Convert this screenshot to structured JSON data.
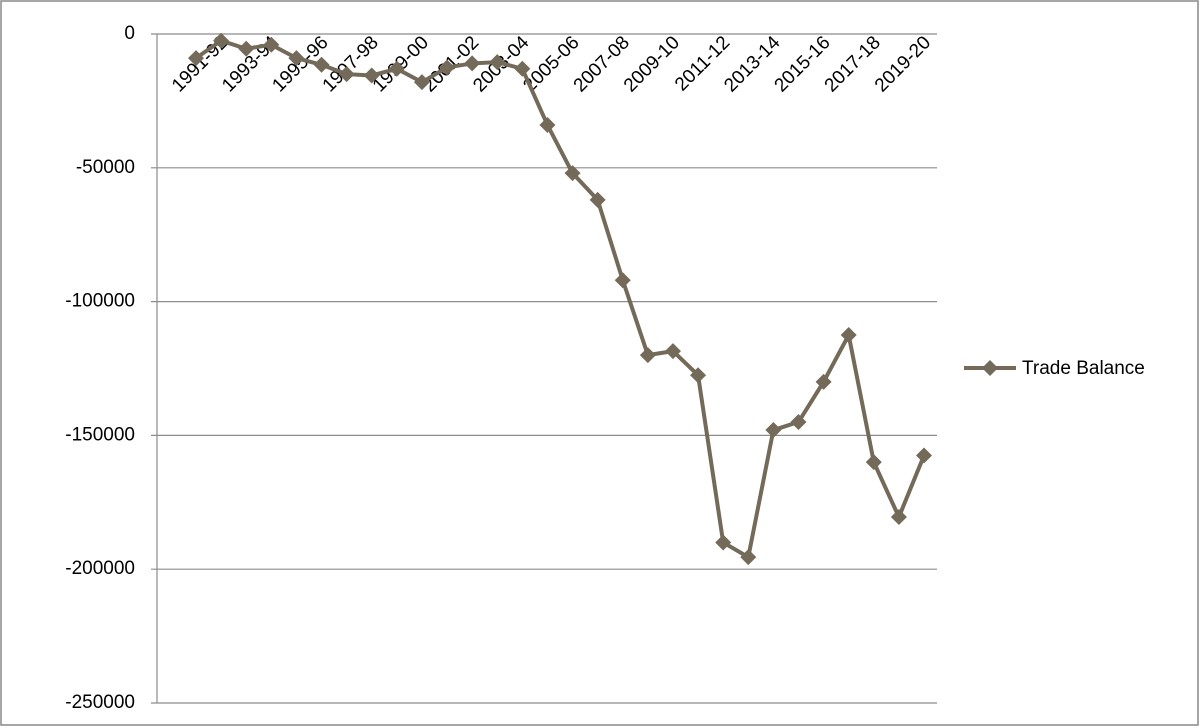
{
  "chart_data": {
    "type": "line",
    "categories": [
      null,
      "1991-92",
      null,
      "1993-94",
      null,
      "1995-96",
      null,
      "1997-98",
      null,
      "1999-00",
      null,
      "2001-02",
      null,
      "2003-04",
      null,
      "2005-06",
      null,
      "2007-08",
      null,
      "2009-10",
      null,
      "2011-12",
      null,
      "2013-14",
      null,
      "2015-16",
      null,
      "2017-18",
      null,
      "2019-20"
    ],
    "series": [
      {
        "name": "Trade Balance",
        "color": "#746a59",
        "values": [
          -9000,
          -2500,
          -5500,
          -4000,
          -9000,
          -11500,
          -15000,
          -15500,
          -13000,
          -18000,
          -12500,
          -11000,
          -10500,
          -13000,
          -34000,
          -52000,
          -62000,
          -92000,
          -120000,
          -118500,
          -127500,
          -190000,
          -195500,
          -148000,
          -145000,
          -130000,
          -112500,
          -160000,
          -180500,
          -157500
        ]
      }
    ],
    "ylim": [
      -250000,
      0
    ],
    "yticks": [
      0,
      -50000,
      -100000,
      -150000,
      -200000,
      -250000
    ],
    "grid": true,
    "legend": "right"
  }
}
